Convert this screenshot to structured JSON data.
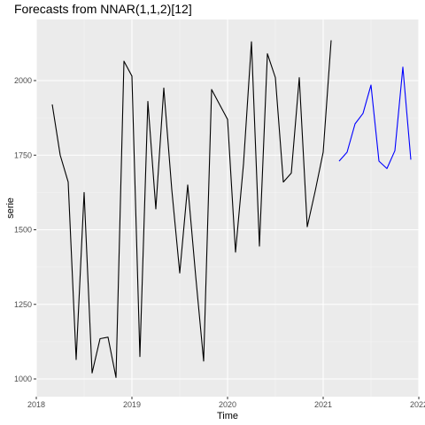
{
  "chart_data": {
    "type": "line",
    "title": "Forecasts from NNAR(1,1,2)[12]",
    "xlabel": "Time",
    "ylabel": "serie",
    "xlim": [
      2018,
      2022
    ],
    "ylim": [
      1000,
      2150
    ],
    "x_ticks": [
      2018,
      2019,
      2020,
      2021,
      2022
    ],
    "y_ticks": [
      1000,
      1250,
      1500,
      1750,
      2000
    ],
    "grid": true,
    "colors": {
      "panel": "#ebebeb",
      "grid_major": "#ffffff",
      "grid_minor": "#f5f5f5",
      "observed": "#000000",
      "forecast": "#0000ff",
      "tick_text": "#4d4d4d",
      "tick_mark": "#333333"
    },
    "series": [
      {
        "role": "observed",
        "x_start": 2018.1667,
        "step": 0.083333,
        "values": [
          1920,
          1750,
          1660,
          1065,
          1625,
          1020,
          1135,
          1140,
          1005,
          2065,
          2015,
          1075,
          1930,
          1570,
          1975,
          1635,
          1355,
          1650,
          1345,
          1060,
          1970,
          1920,
          1870,
          1425,
          1720,
          2130,
          1445,
          2090,
          2010,
          1660,
          1690,
          2010,
          1510,
          1630,
          1760,
          2135
        ]
      },
      {
        "role": "forecast",
        "x_start": 2021.1667,
        "step": 0.083333,
        "values": [
          1730,
          1760,
          1855,
          1890,
          1985,
          1730,
          1705,
          1765,
          2045,
          1735
        ]
      }
    ]
  }
}
